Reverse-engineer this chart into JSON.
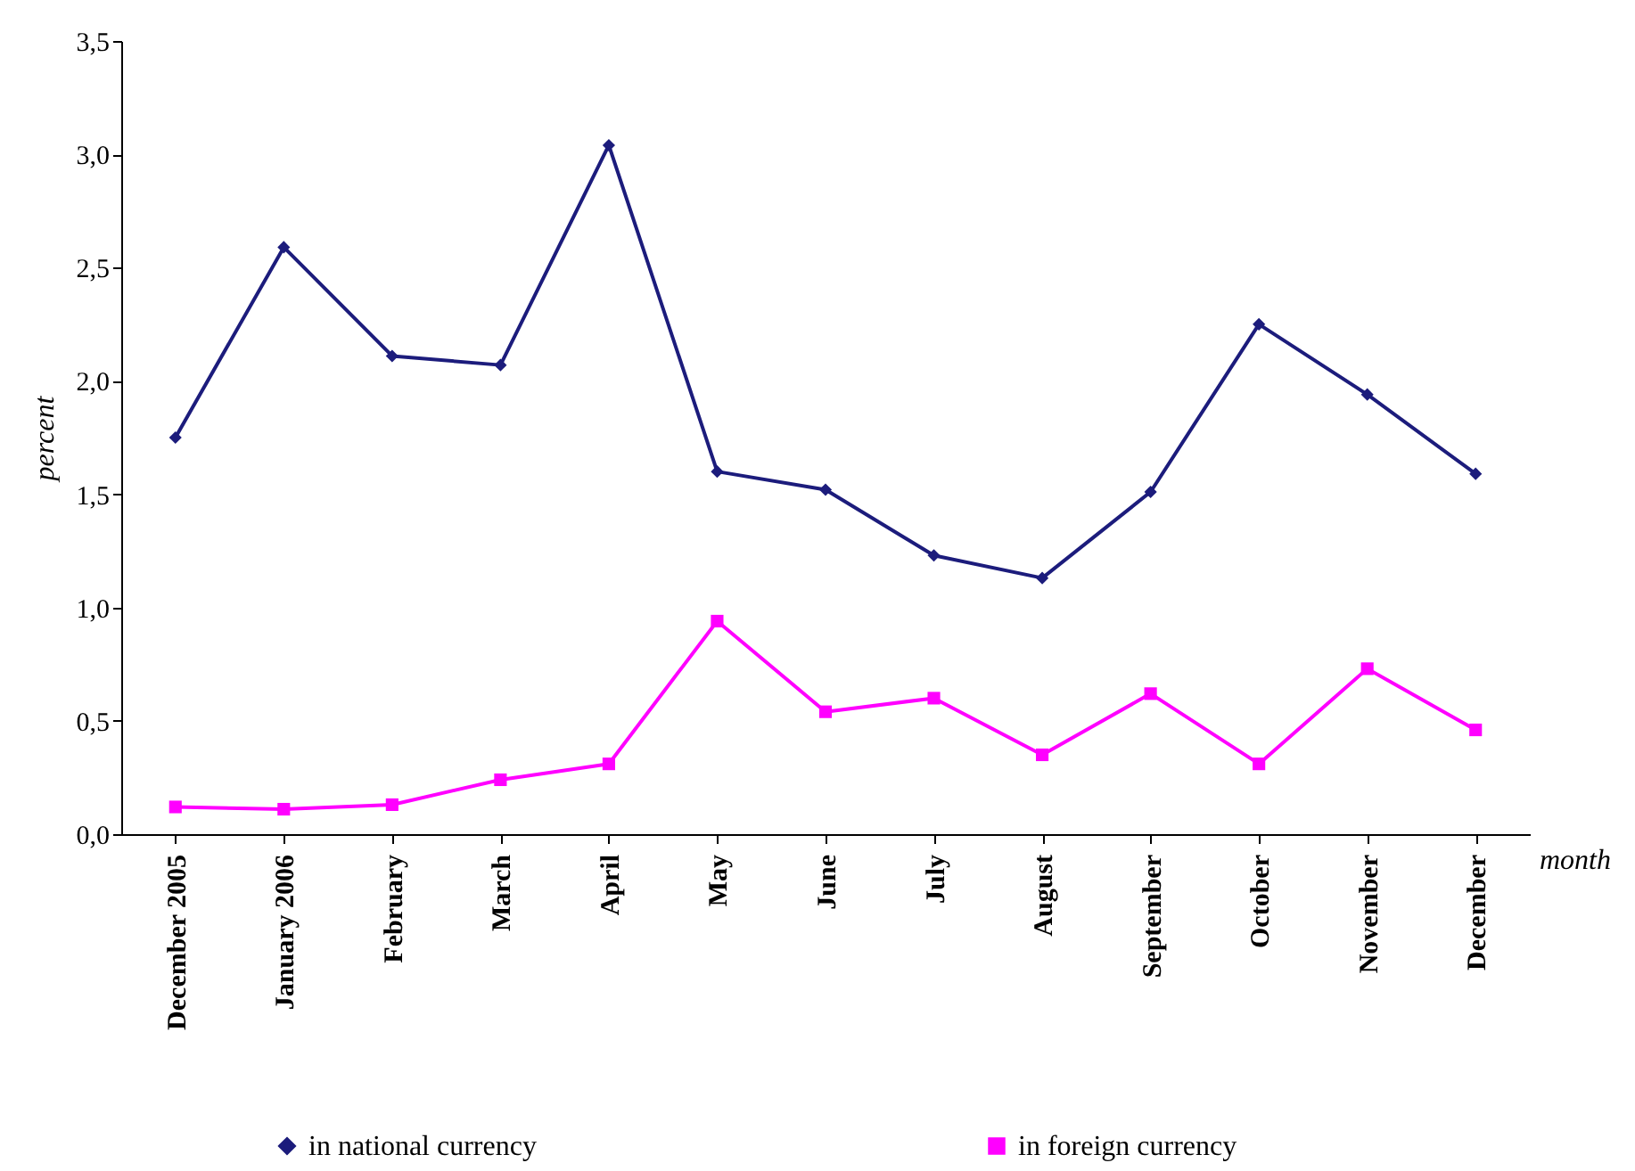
{
  "chart_data": {
    "type": "line",
    "xlabel": "month",
    "ylabel": "percent",
    "categories": [
      "December 2005",
      "January 2006",
      "February",
      "March",
      "April",
      "May",
      "June",
      "July",
      "August",
      "September",
      "October",
      "November",
      "December"
    ],
    "series": [
      {
        "name": "in national currency",
        "color": "#1c1c7c",
        "marker": "diamond",
        "values": [
          1.75,
          2.59,
          2.11,
          2.07,
          3.04,
          1.6,
          1.52,
          1.23,
          1.13,
          1.51,
          2.25,
          1.94,
          1.59
        ]
      },
      {
        "name": "in foreign currency",
        "color": "#ff00ff",
        "marker": "square",
        "values": [
          0.12,
          0.11,
          0.13,
          0.24,
          0.31,
          0.94,
          0.54,
          0.6,
          0.35,
          0.62,
          0.31,
          0.73,
          0.46
        ]
      }
    ],
    "ylim": [
      0,
      3.5
    ],
    "yticks": [
      {
        "value": 0,
        "label": "0,0"
      },
      {
        "value": 0.5,
        "label": "0,5"
      },
      {
        "value": 1,
        "label": "1,0"
      },
      {
        "value": 1.5,
        "label": "1,5"
      },
      {
        "value": 2,
        "label": "2,0"
      },
      {
        "value": 2.5,
        "label": "2,5"
      },
      {
        "value": 3,
        "label": "3,0"
      },
      {
        "value": 3.5,
        "label": "3,5"
      }
    ],
    "grid": false,
    "legend": "bottom",
    "line_style": "solid"
  }
}
